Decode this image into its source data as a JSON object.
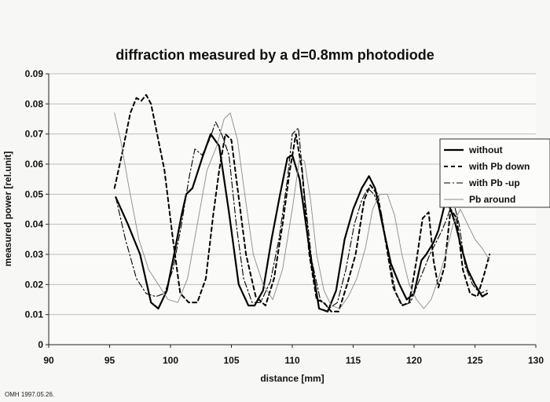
{
  "chart_data": {
    "type": "line",
    "title": "diffraction measured by a d=0.8mm photodiode",
    "xlabel": "distance [mm]",
    "ylabel": "measured power [rel.unit]",
    "xlim": [
      90,
      130
    ],
    "ylim": [
      0,
      0.09
    ],
    "xticks": [
      "90",
      "95",
      "100",
      "105",
      "110",
      "115",
      "120",
      "125",
      "130"
    ],
    "yticks": [
      "0",
      "0.01",
      "0.02",
      "0.03",
      "0.04",
      "0.05",
      "0.06",
      "0.07",
      "0.08",
      "0.09"
    ],
    "grid": "horizontal",
    "legend_position": "right",
    "series": [
      {
        "name": "without",
        "style": "solid",
        "color": "#000000",
        "x": [
          95.5,
          96.5,
          97.5,
          98.4,
          99.0,
          99.7,
          100.3,
          100.9,
          101.3,
          101.8,
          102.6,
          103.3,
          104.0,
          104.8,
          105.6,
          106.4,
          106.9,
          107.6,
          108.3,
          109.0,
          109.6,
          110.0,
          110.6,
          111.4,
          112.2,
          112.9,
          113.6,
          114.3,
          115.0,
          115.7,
          116.3,
          116.8,
          117.4,
          118.1,
          118.8,
          119.4,
          120.0,
          120.6,
          121.0,
          121.6,
          122.0,
          122.6,
          123.0,
          123.4,
          123.9,
          124.4,
          125.0,
          125.6,
          126.0
        ],
        "y": [
          0.049,
          0.04,
          0.03,
          0.014,
          0.012,
          0.018,
          0.03,
          0.043,
          0.05,
          0.052,
          0.062,
          0.07,
          0.066,
          0.044,
          0.02,
          0.013,
          0.013,
          0.018,
          0.035,
          0.05,
          0.062,
          0.063,
          0.055,
          0.032,
          0.012,
          0.011,
          0.018,
          0.035,
          0.045,
          0.052,
          0.056,
          0.052,
          0.04,
          0.027,
          0.02,
          0.015,
          0.017,
          0.028,
          0.03,
          0.034,
          0.038,
          0.048,
          0.045,
          0.04,
          0.032,
          0.025,
          0.02,
          0.016,
          0.017
        ]
      },
      {
        "name": "with Pb down",
        "style": "dashed",
        "color": "#000000",
        "x": [
          95.4,
          96.0,
          96.7,
          97.2,
          97.6,
          98.0,
          98.4,
          98.9,
          99.5,
          100.2,
          100.8,
          101.5,
          102.2,
          102.9,
          103.5,
          104.0,
          104.5,
          105.0,
          105.5,
          106.2,
          107.0,
          107.8,
          108.5,
          109.2,
          109.8,
          110.3,
          110.8,
          111.4,
          112.0,
          112.6,
          113.2,
          113.8,
          114.5,
          115.2,
          115.9,
          116.4,
          117.0,
          117.6,
          118.3,
          119.0,
          119.6,
          120.2,
          120.7,
          121.2,
          121.6,
          122.0,
          122.5,
          123.0,
          123.5,
          124.0,
          124.6,
          125.2,
          125.8,
          126.2
        ],
        "y": [
          0.052,
          0.063,
          0.077,
          0.082,
          0.081,
          0.083,
          0.08,
          0.07,
          0.058,
          0.035,
          0.017,
          0.014,
          0.014,
          0.022,
          0.043,
          0.058,
          0.07,
          0.068,
          0.052,
          0.03,
          0.016,
          0.013,
          0.022,
          0.04,
          0.058,
          0.07,
          0.058,
          0.03,
          0.015,
          0.014,
          0.011,
          0.011,
          0.02,
          0.03,
          0.048,
          0.053,
          0.05,
          0.036,
          0.019,
          0.013,
          0.014,
          0.028,
          0.042,
          0.044,
          0.028,
          0.019,
          0.026,
          0.045,
          0.042,
          0.025,
          0.017,
          0.016,
          0.024,
          0.03
        ]
      },
      {
        "name": "with Pb -up",
        "style": "dashdot",
        "color": "#000000",
        "x": [
          95.5,
          96.3,
          97.2,
          98.0,
          98.8,
          99.5,
          100.2,
          100.9,
          101.5,
          102.0,
          102.6,
          103.2,
          103.7,
          104.2,
          104.8,
          105.4,
          106.0,
          106.7,
          107.4,
          108.2,
          108.9,
          109.6,
          110.0,
          110.5,
          111.0,
          111.6,
          112.3,
          113.0,
          113.7,
          114.4,
          115.1,
          115.7,
          116.2,
          116.7,
          117.3,
          117.9,
          118.5,
          119.1,
          119.7,
          120.3,
          120.8,
          121.3,
          121.8,
          122.3,
          122.7,
          123.2,
          123.7,
          124.2,
          124.8,
          125.4,
          126.0
        ],
        "y": [
          0.049,
          0.035,
          0.022,
          0.017,
          0.016,
          0.017,
          0.025,
          0.04,
          0.055,
          0.065,
          0.063,
          0.068,
          0.074,
          0.07,
          0.063,
          0.04,
          0.022,
          0.014,
          0.014,
          0.021,
          0.035,
          0.055,
          0.07,
          0.072,
          0.05,
          0.028,
          0.015,
          0.012,
          0.014,
          0.025,
          0.04,
          0.048,
          0.052,
          0.05,
          0.044,
          0.03,
          0.017,
          0.013,
          0.014,
          0.02,
          0.025,
          0.03,
          0.034,
          0.038,
          0.042,
          0.048,
          0.04,
          0.026,
          0.02,
          0.017,
          0.018
        ]
      },
      {
        "name": "Pb around",
        "style": "thin",
        "color": "#8a8a8a",
        "x": [
          95.4,
          95.9,
          96.6,
          97.4,
          98.2,
          99.0,
          99.8,
          100.6,
          101.4,
          102.2,
          103.0,
          103.8,
          104.4,
          104.9,
          105.5,
          106.1,
          106.8,
          107.6,
          108.4,
          109.2,
          110.0,
          110.6,
          111.0,
          111.5,
          112.0,
          112.6,
          113.2,
          113.9,
          114.6,
          115.3,
          116.0,
          116.6,
          117.2,
          117.8,
          118.4,
          119.0,
          119.6,
          120.2,
          120.8,
          121.4,
          122.0,
          122.6,
          123.2,
          123.8,
          124.4,
          125.0,
          125.6,
          126.2
        ],
        "y": [
          0.077,
          0.068,
          0.052,
          0.035,
          0.025,
          0.02,
          0.015,
          0.014,
          0.022,
          0.04,
          0.058,
          0.066,
          0.075,
          0.077,
          0.068,
          0.05,
          0.03,
          0.02,
          0.015,
          0.025,
          0.045,
          0.062,
          0.061,
          0.048,
          0.03,
          0.018,
          0.013,
          0.012,
          0.016,
          0.022,
          0.032,
          0.045,
          0.05,
          0.05,
          0.043,
          0.03,
          0.02,
          0.015,
          0.012,
          0.015,
          0.022,
          0.03,
          0.04,
          0.045,
          0.04,
          0.035,
          0.032,
          0.028
        ]
      }
    ]
  },
  "footnote": "OMH 1997.05.26."
}
